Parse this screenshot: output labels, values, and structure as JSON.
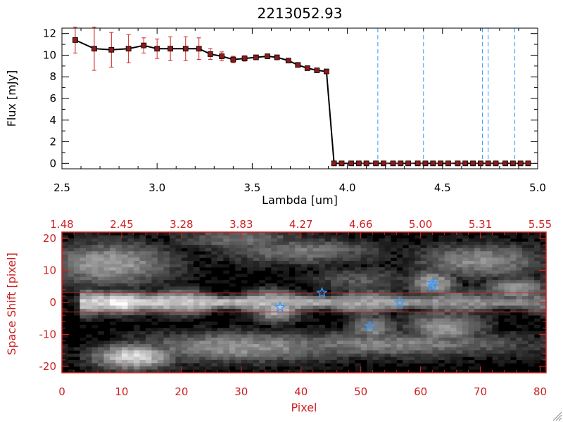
{
  "chart_data": [
    {
      "type": "line",
      "title": "2213052.93",
      "xlabel": "Lambda [um]",
      "ylabel": "Flux [mJy]",
      "xlim": [
        2.5,
        5.0
      ],
      "ylim": [
        -0.5,
        12.5
      ],
      "xticks": [
        "2.5",
        "3.0",
        "3.5",
        "4.0",
        "4.5",
        "5.0"
      ],
      "yticks": [
        "0",
        "2",
        "4",
        "6",
        "8",
        "10",
        "12"
      ],
      "colors": {
        "line": "#000000",
        "marker": "#8b1a1a",
        "errorbar": "#cc2222",
        "vlines": "#3399ff"
      },
      "series": [
        {
          "x": [
            2.57,
            2.67,
            2.76,
            2.85,
            2.93,
            3.0,
            3.07,
            3.15,
            3.22,
            3.28,
            3.34,
            3.4,
            3.46,
            3.52,
            3.58,
            3.63,
            3.69,
            3.74,
            3.79,
            3.84,
            3.89,
            3.93,
            3.97,
            4.02,
            4.06,
            4.1,
            4.15,
            4.19,
            4.24,
            4.28,
            4.32,
            4.37,
            4.41,
            4.45,
            4.49,
            4.53,
            4.58,
            4.62,
            4.66,
            4.7,
            4.74,
            4.78,
            4.83,
            4.87,
            4.91,
            4.95
          ],
          "y": [
            11.4,
            10.6,
            10.5,
            10.6,
            10.9,
            10.6,
            10.6,
            10.6,
            10.6,
            10.1,
            9.9,
            9.6,
            9.7,
            9.8,
            9.9,
            9.8,
            9.5,
            9.1,
            8.8,
            8.6,
            8.5,
            0.0,
            0.0,
            0.0,
            0.0,
            0.0,
            0.0,
            0.0,
            0.0,
            0.0,
            0.0,
            0.0,
            0.0,
            0.0,
            0.0,
            0.0,
            0.0,
            0.0,
            0.0,
            0.0,
            0.0,
            0.0,
            0.0,
            0.0,
            0.0,
            0.0
          ],
          "err": [
            1.2,
            2.0,
            1.6,
            1.3,
            0.7,
            0.9,
            1.1,
            1.1,
            1.0,
            0.5,
            0.4,
            0.3,
            0.25,
            0.2,
            0.2,
            0.2,
            0.2,
            0.2,
            0.2,
            0.2,
            0.2,
            0.05,
            0.05,
            0.05,
            0.05,
            0.05,
            0.05,
            0.05,
            0.05,
            0.05,
            0.05,
            0.05,
            0.05,
            0.05,
            0.05,
            0.05,
            0.05,
            0.05,
            0.05,
            0.05,
            0.05,
            0.05,
            0.05,
            0.05,
            0.05,
            0.05
          ]
        }
      ],
      "vertical_lines_x": [
        4.16,
        4.4,
        4.71,
        4.74,
        4.88
      ]
    },
    {
      "type": "heatmap",
      "xlabel": "Pixel",
      "ylabel": "Space Shift [pixel]",
      "xlim": [
        0,
        81
      ],
      "ylim": [
        -22,
        22
      ],
      "xticks": [
        "0",
        "10",
        "20",
        "30",
        "40",
        "50",
        "60",
        "70",
        "80"
      ],
      "yticks": [
        "-20",
        "-10",
        "0",
        "10",
        "20"
      ],
      "top_axis_labels": [
        "1.48",
        "2.45",
        "3.28",
        "3.83",
        "4.27",
        "4.66",
        "5.00",
        "5.31",
        "5.55"
      ],
      "aperture_y": [
        -3,
        3
      ],
      "colormap": "grayscale",
      "colors": {
        "axes": "#cc2222",
        "stars": "#3399ff"
      },
      "star_markers": [
        {
          "x": 36.5,
          "y": -1.5
        },
        {
          "x": 43.5,
          "y": 3
        },
        {
          "x": 51.5,
          "y": -7.5
        },
        {
          "x": 56.5,
          "y": 0
        },
        {
          "x": 62.0,
          "y": 5
        },
        {
          "x": 62.0,
          "y": 6
        }
      ]
    }
  ]
}
